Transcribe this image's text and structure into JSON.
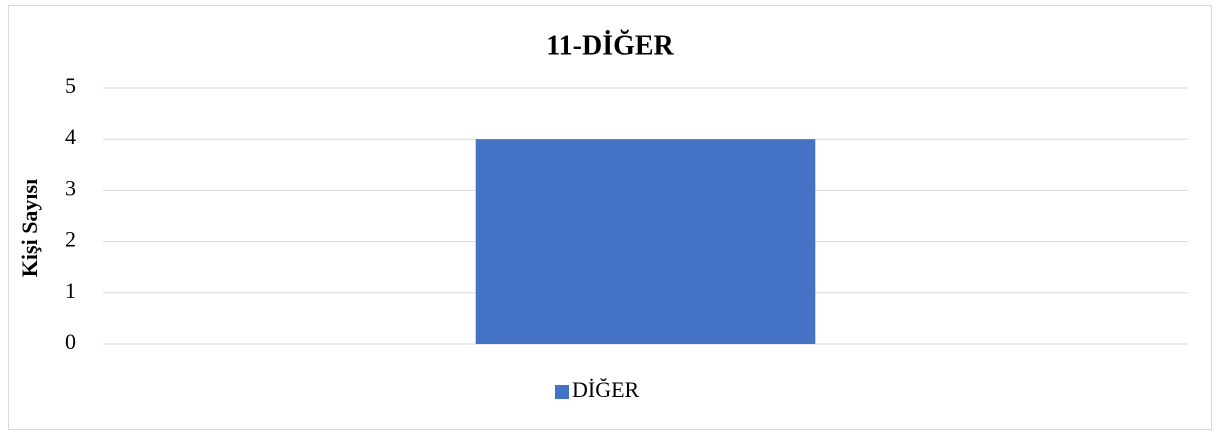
{
  "chart_data": {
    "type": "bar",
    "title": "11-DİĞER",
    "y_label": "Kişi Sayısı",
    "categories": [
      null
    ],
    "series": [
      {
        "name": "DİĞER",
        "color": "#4472c4",
        "values": [
          4
        ]
      }
    ],
    "ylim": [
      0,
      5
    ],
    "yticks": [
      0,
      1,
      2,
      3,
      4,
      5
    ],
    "grid": true,
    "legend": "bottom"
  }
}
